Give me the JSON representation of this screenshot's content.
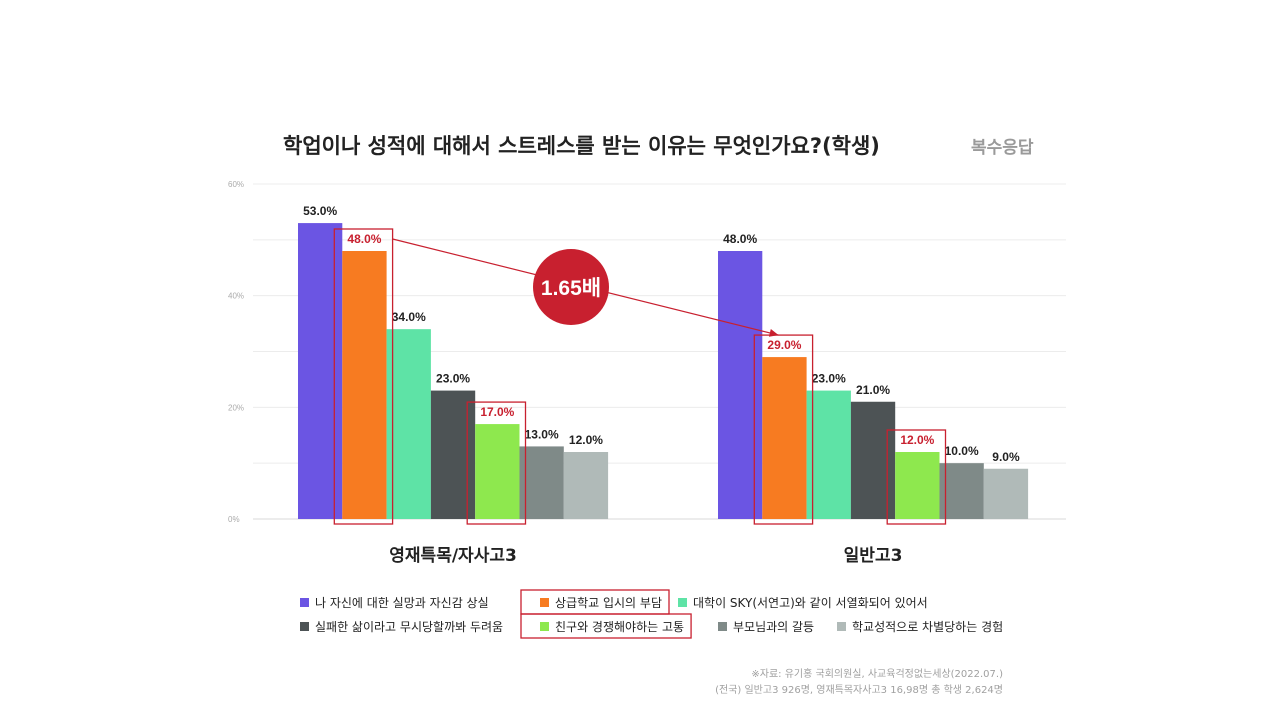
{
  "title": "학업이나 성적에 대해서 스트레스를 받는 이유는 무엇인가요?(학생)",
  "subtitle": "복수응답",
  "ratio_label": "1.65배",
  "source": [
    "※자료: 유기홍 국회의원실, 사교육걱정없는세상(2022.07.)",
    "(전국) 일반고3 926명, 영재특목자사고3 16,98명 총 학생 2,624명"
  ],
  "chart_data": {
    "type": "bar",
    "categories": [
      "영재특목/자사고3",
      "일반고3"
    ],
    "ylim": [
      0,
      60
    ],
    "yticks": [
      "0%",
      "20%",
      "40%",
      "60%"
    ],
    "grid": true,
    "legend_position": "bottom",
    "series": [
      {
        "name": "나 자신에 대한 실망과 자신감 상실",
        "values": [
          53.0,
          48.0
        ],
        "labels": [
          "53.0%",
          "48.0%"
        ],
        "color": "#6b55e3",
        "highlight": false
      },
      {
        "name": "상급학교 입시의 부담",
        "values": [
          48.0,
          29.0
        ],
        "labels": [
          "48.0%",
          "29.0%"
        ],
        "color": "#f77b21",
        "highlight": true
      },
      {
        "name": "대학이 SKY(서연고)와 같이 서열화되어 있어서",
        "values": [
          34.0,
          23.0
        ],
        "labels": [
          "34.0%",
          "23.0%"
        ],
        "color": "#5ee3a6",
        "highlight": false
      },
      {
        "name": "실패한 삶이라고 무시당할까봐 두려움",
        "values": [
          23.0,
          21.0
        ],
        "labels": [
          "23.0%",
          "21.0%"
        ],
        "color": "#4d5355",
        "highlight": false
      },
      {
        "name": "친구와 경쟁해야하는 고통",
        "values": [
          17.0,
          12.0
        ],
        "labels": [
          "17.0%",
          "12.0%"
        ],
        "color": "#8ee84e",
        "highlight": true
      },
      {
        "name": "부모님과의 갈등",
        "values": [
          13.0,
          10.0
        ],
        "labels": [
          "13.0%",
          "10.0%"
        ],
        "color": "#7f8a88",
        "highlight": false
      },
      {
        "name": "학교성적으로 차별당하는 경험",
        "values": [
          12.0,
          9.0
        ],
        "labels": [
          "12.0%",
          "9.0%"
        ],
        "color": "#b0bab8",
        "highlight": false
      }
    ],
    "highlight_color": "#c8202f"
  }
}
